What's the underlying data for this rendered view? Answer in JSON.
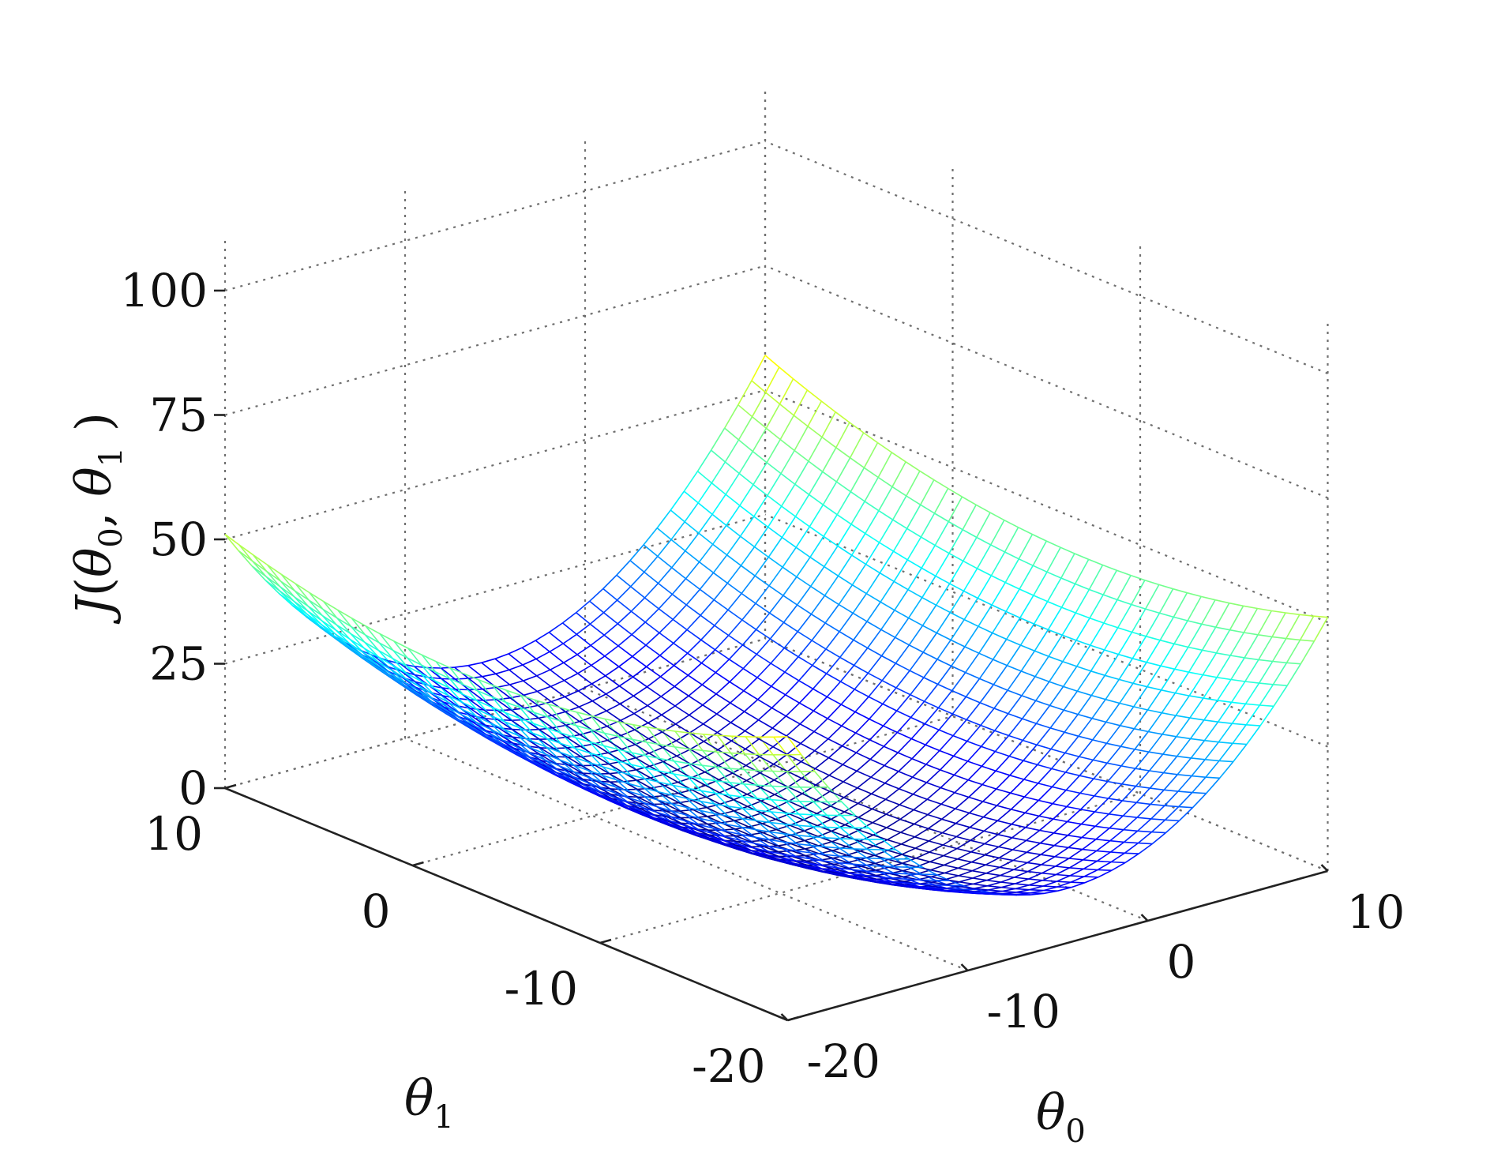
{
  "chart_data": {
    "type": "surface-mesh",
    "function": "quadratic bowl",
    "x_axis": {
      "label": "θ",
      "label_sub": "0",
      "ticks": [
        "-20",
        "-10",
        "0",
        "10"
      ],
      "range": [
        -20,
        10
      ]
    },
    "y_axis": {
      "label": "θ",
      "label_sub": "1",
      "ticks": [
        "-20",
        "-10",
        "0",
        "10"
      ],
      "range": [
        -20,
        10
      ]
    },
    "z_axis": {
      "label_prefix": "J",
      "label_t0": "θ",
      "label_s0": "0",
      "label_t1": "θ",
      "label_s1": "1",
      "ticks": [
        "0",
        "25",
        "50",
        "75",
        "100"
      ],
      "range": [
        0,
        100
      ]
    },
    "surface": {
      "min_at": {
        "theta0": -5,
        "theta1": -5
      },
      "min_value": 0,
      "resolution": 41
    },
    "corners": [
      {
        "theta0": -20,
        "theta1": -20,
        "J": 24
      },
      {
        "theta0": 10,
        "theta1": -20,
        "J": 50
      },
      {
        "theta0": -20,
        "theta1": 10,
        "J": 52
      },
      {
        "theta0": 10,
        "theta1": 10,
        "J": 90
      }
    ],
    "colormap": "jet",
    "grid": true
  }
}
